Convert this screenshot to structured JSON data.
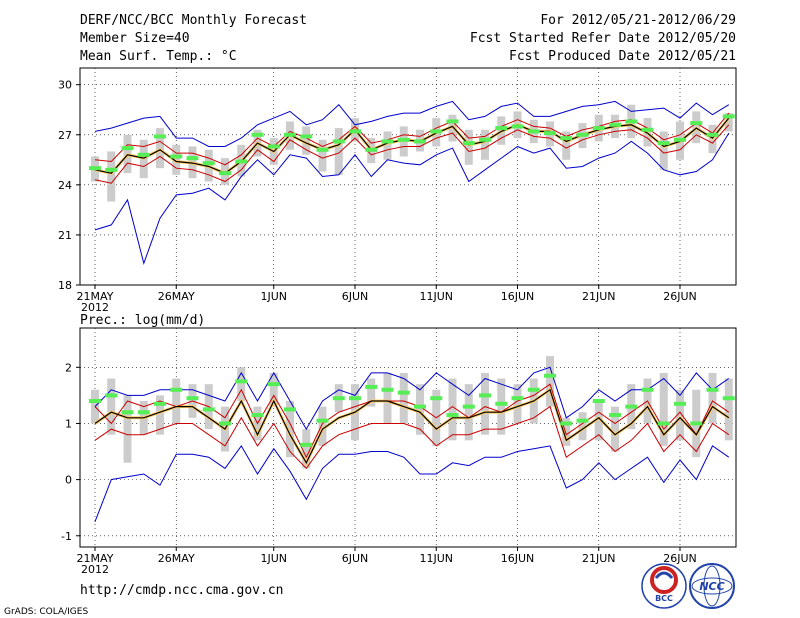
{
  "header": {
    "left": [
      "DERF/NCC/BCC Monthly Forecast",
      "Member Size=40",
      "Mean Surf. Temp.: °C"
    ],
    "right": [
      "For 2012/05/21-2012/06/29",
      "Fcst Started Refer Date 2012/05/20",
      "Fcst Produced Date 2012/05/21"
    ]
  },
  "footer": {
    "url": "http://cmdp.ncc.cma.gov.cn",
    "credit": "GrADS: COLA/IGES",
    "logo_bcc": "BCC",
    "logo_ncc": "NCC"
  },
  "colors": {
    "spread": "#0000cc",
    "ensmean": "#000000",
    "p_lines": "#cc0000",
    "mark": "#55ee55",
    "box": "#cccccc",
    "ref": "#ffcc66"
  },
  "chart_data": [
    {
      "type": "line",
      "title": "Mean Surf. Temp.: °C",
      "x": "day index 0..39 (2012/05/21 .. 2012/06/29)",
      "xticks": [
        {
          "day": 0,
          "label": "21MAY"
        },
        {
          "day": 5,
          "label": "26MAY"
        },
        {
          "day": 11,
          "label": "1JUN"
        },
        {
          "day": 16,
          "label": "6JUN"
        },
        {
          "day": 21,
          "label": "11JUN"
        },
        {
          "day": 26,
          "label": "16JUN"
        },
        {
          "day": 31,
          "label": "21JUN"
        },
        {
          "day": 36,
          "label": "26JUN"
        }
      ],
      "year_label": "2012",
      "ylim": [
        18,
        31
      ],
      "yticks": [
        18,
        21,
        24,
        27,
        30
      ],
      "series": [
        {
          "name": "max",
          "values": [
            27.2,
            27.4,
            27.7,
            28.0,
            28.1,
            26.8,
            26.8,
            26.3,
            26.3,
            26.8,
            27.6,
            28.0,
            28.4,
            27.6,
            27.9,
            28.8,
            27.6,
            27.8,
            28.1,
            28.3,
            28.3,
            28.7,
            29.0,
            27.9,
            28.1,
            28.7,
            28.9,
            28.1,
            28.1,
            28.4,
            28.7,
            28.8,
            29.0,
            28.4,
            28.5,
            28.6,
            28.0,
            28.9,
            28.2,
            28.8
          ]
        },
        {
          "name": "p90",
          "values": [
            25.5,
            25.4,
            26.4,
            26.3,
            26.6,
            25.9,
            25.9,
            25.6,
            25.2,
            25.8,
            26.8,
            26.3,
            27.2,
            26.8,
            26.3,
            26.7,
            27.5,
            26.5,
            26.7,
            27.0,
            26.9,
            27.4,
            27.8,
            26.8,
            26.9,
            27.5,
            27.9,
            27.5,
            27.4,
            26.9,
            27.3,
            27.5,
            27.8,
            27.9,
            27.4,
            26.7,
            27.0,
            27.7,
            27.1,
            28.3
          ]
        },
        {
          "name": "mean",
          "values": [
            24.9,
            24.7,
            25.8,
            25.6,
            26.1,
            25.4,
            25.3,
            25.1,
            24.7,
            25.4,
            26.5,
            26.0,
            27.0,
            26.5,
            26.1,
            26.4,
            27.3,
            26.1,
            26.5,
            26.7,
            26.6,
            27.1,
            27.5,
            26.4,
            26.6,
            27.2,
            27.6,
            27.2,
            27.2,
            26.6,
            27.0,
            27.3,
            27.5,
            27.6,
            27.1,
            26.3,
            26.6,
            27.4,
            26.8,
            28.0
          ]
        },
        {
          "name": "p10",
          "values": [
            24.3,
            24.1,
            25.3,
            25.1,
            25.7,
            25.0,
            24.9,
            24.6,
            24.2,
            24.9,
            26.1,
            25.4,
            26.7,
            26.1,
            25.6,
            25.9,
            26.8,
            25.8,
            26.1,
            26.3,
            26.3,
            26.8,
            27.1,
            26.0,
            26.2,
            26.8,
            27.3,
            26.9,
            26.8,
            26.2,
            26.7,
            27.0,
            27.2,
            27.3,
            26.8,
            25.9,
            26.1,
            27.0,
            26.5,
            27.6
          ]
        },
        {
          "name": "min",
          "values": [
            21.3,
            21.6,
            23.1,
            19.3,
            22.0,
            23.4,
            23.5,
            23.8,
            23.1,
            24.5,
            25.5,
            24.6,
            25.8,
            25.6,
            24.5,
            24.6,
            25.8,
            24.5,
            25.5,
            25.3,
            25.2,
            25.8,
            26.2,
            24.2,
            24.9,
            25.6,
            26.3,
            25.9,
            26.2,
            25.0,
            25.1,
            25.6,
            25.9,
            26.6,
            25.9,
            24.9,
            24.6,
            24.8,
            25.5,
            27.1
          ]
        },
        {
          "name": "box_top",
          "values": [
            25.7,
            26.0,
            27.0,
            26.7,
            27.4,
            26.4,
            26.3,
            26.1,
            25.6,
            26.4,
            27.3,
            26.8,
            27.8,
            27.5,
            26.7,
            27.4,
            28.0,
            26.8,
            27.2,
            27.5,
            27.3,
            28.0,
            28.2,
            27.3,
            27.3,
            28.1,
            28.4,
            27.9,
            27.8,
            27.2,
            27.7,
            28.2,
            28.2,
            28.8,
            28.0,
            27.2,
            27.8,
            28.4,
            27.6,
            28.3
          ]
        },
        {
          "name": "box_bottom",
          "values": [
            24.2,
            23.0,
            24.7,
            24.4,
            25.0,
            24.6,
            24.4,
            24.2,
            24.0,
            24.5,
            25.7,
            25.2,
            26.1,
            25.8,
            24.8,
            24.6,
            26.6,
            25.3,
            25.5,
            25.7,
            26.0,
            26.3,
            26.6,
            25.2,
            25.5,
            26.4,
            26.8,
            26.5,
            26.3,
            25.5,
            26.2,
            26.6,
            26.8,
            26.8,
            26.3,
            24.9,
            25.5,
            26.5,
            25.9,
            27.2
          ]
        },
        {
          "name": "green_mark",
          "values": [
            25.0,
            24.9,
            26.2,
            25.8,
            26.9,
            25.7,
            25.6,
            25.3,
            24.7,
            25.4,
            27.0,
            26.3,
            27.0,
            26.9,
            26.1,
            26.6,
            27.2,
            26.1,
            26.6,
            26.7,
            26.6,
            27.2,
            27.8,
            26.5,
            26.7,
            27.4,
            27.5,
            27.2,
            27.1,
            26.8,
            27.0,
            27.4,
            27.6,
            27.8,
            27.3,
            26.5,
            26.7,
            27.7,
            27.0,
            28.1
          ]
        }
      ]
    },
    {
      "type": "line",
      "title": "Prec.: log(mm/d)",
      "x": "day index 0..39 (2012/05/21 .. 2012/06/29)",
      "xticks": [
        {
          "day": 0,
          "label": "21MAY"
        },
        {
          "day": 5,
          "label": "26MAY"
        },
        {
          "day": 11,
          "label": "1JUN"
        },
        {
          "day": 16,
          "label": "6JUN"
        },
        {
          "day": 21,
          "label": "11JUN"
        },
        {
          "day": 26,
          "label": "16JUN"
        },
        {
          "day": 31,
          "label": "21JUN"
        },
        {
          "day": 36,
          "label": "26JUN"
        }
      ],
      "year_label": "2012",
      "ylim": [
        -1.2,
        2.7
      ],
      "yticks": [
        -1,
        0,
        1,
        2
      ],
      "series": [
        {
          "name": "max",
          "values": [
            1.3,
            1.6,
            1.5,
            1.5,
            1.6,
            1.6,
            1.6,
            1.5,
            1.4,
            1.9,
            1.4,
            1.9,
            1.4,
            0.9,
            1.4,
            1.6,
            1.5,
            1.9,
            1.9,
            1.8,
            1.6,
            1.9,
            1.7,
            1.5,
            1.8,
            1.7,
            1.6,
            1.9,
            2.0,
            1.1,
            1.3,
            1.6,
            1.4,
            1.6,
            1.6,
            1.8,
            1.5,
            1.9,
            1.6,
            1.8
          ]
        },
        {
          "name": "p90",
          "values": [
            1.3,
            1.0,
            1.4,
            1.3,
            1.4,
            1.3,
            1.4,
            1.3,
            1.1,
            1.6,
            1.0,
            1.5,
            1.0,
            0.4,
            1.0,
            1.2,
            1.3,
            1.4,
            1.4,
            1.4,
            1.3,
            1.1,
            1.3,
            1.1,
            1.3,
            1.2,
            1.4,
            1.5,
            1.7,
            0.8,
            1.0,
            1.2,
            1.0,
            1.2,
            1.4,
            0.9,
            1.2,
            0.8,
            1.4,
            1.2
          ]
        },
        {
          "name": "mean",
          "values": [
            1.0,
            1.2,
            1.1,
            1.1,
            1.2,
            1.3,
            1.3,
            1.1,
            0.9,
            1.4,
            0.8,
            1.4,
            0.8,
            0.3,
            0.9,
            1.1,
            1.2,
            1.4,
            1.4,
            1.3,
            1.2,
            0.9,
            1.1,
            1.1,
            1.2,
            1.2,
            1.3,
            1.4,
            1.6,
            0.7,
            0.9,
            1.1,
            0.8,
            1.0,
            1.3,
            0.8,
            1.1,
            0.8,
            1.3,
            1.1
          ]
        },
        {
          "name": "p10",
          "values": [
            0.7,
            0.9,
            0.8,
            0.8,
            0.9,
            1.0,
            1.0,
            0.8,
            0.6,
            1.1,
            0.6,
            1.0,
            0.5,
            0.2,
            0.6,
            0.8,
            0.9,
            1.0,
            1.0,
            1.0,
            0.9,
            0.6,
            0.8,
            0.8,
            0.9,
            0.9,
            1.0,
            1.1,
            1.3,
            0.4,
            0.6,
            0.8,
            0.5,
            0.7,
            1.0,
            0.5,
            0.8,
            0.5,
            1.0,
            0.8
          ]
        },
        {
          "name": "min",
          "values": [
            -0.75,
            0.0,
            0.05,
            0.1,
            -0.1,
            0.45,
            0.45,
            0.4,
            0.2,
            0.6,
            0.1,
            0.55,
            0.15,
            -0.35,
            0.2,
            0.45,
            0.45,
            0.5,
            0.5,
            0.4,
            0.1,
            0.1,
            0.3,
            0.25,
            0.4,
            0.4,
            0.5,
            0.55,
            0.6,
            -0.15,
            0.0,
            0.3,
            0.0,
            0.2,
            0.4,
            -0.05,
            0.35,
            0.0,
            0.6,
            0.4
          ]
        },
        {
          "name": "box_top",
          "values": [
            1.6,
            1.8,
            1.5,
            1.4,
            1.5,
            1.8,
            1.7,
            1.7,
            1.3,
            2.0,
            1.3,
            1.9,
            1.4,
            0.9,
            1.3,
            1.7,
            1.7,
            1.8,
            1.9,
            1.9,
            1.7,
            1.6,
            1.8,
            1.7,
            1.9,
            1.8,
            1.7,
            1.8,
            2.2,
            1.1,
            1.2,
            1.4,
            1.3,
            1.7,
            1.8,
            1.9,
            1.6,
            1.6,
            1.9,
            1.8
          ]
        },
        {
          "name": "box_bottom",
          "values": [
            1.0,
            0.8,
            0.3,
            0.8,
            0.8,
            1.0,
            1.1,
            0.9,
            0.5,
            1.4,
            0.7,
            1.3,
            0.4,
            0.2,
            0.6,
            1.2,
            0.7,
            1.3,
            1.0,
            1.0,
            0.8,
            0.6,
            0.7,
            0.7,
            0.8,
            0.8,
            1.0,
            1.0,
            1.3,
            0.6,
            0.7,
            0.7,
            0.5,
            0.9,
            1.0,
            0.6,
            0.7,
            0.4,
            1.0,
            0.7
          ]
        },
        {
          "name": "green_mark",
          "values": [
            1.4,
            1.5,
            1.2,
            1.2,
            1.35,
            1.6,
            1.45,
            1.25,
            1.0,
            1.75,
            1.15,
            1.7,
            1.25,
            0.62,
            1.05,
            1.45,
            1.45,
            1.65,
            1.6,
            1.55,
            1.3,
            1.45,
            1.15,
            1.3,
            1.5,
            1.35,
            1.45,
            1.6,
            1.85,
            1.0,
            1.05,
            1.4,
            1.15,
            1.3,
            1.6,
            1.0,
            1.35,
            1.0,
            1.6,
            1.45
          ]
        }
      ]
    }
  ]
}
